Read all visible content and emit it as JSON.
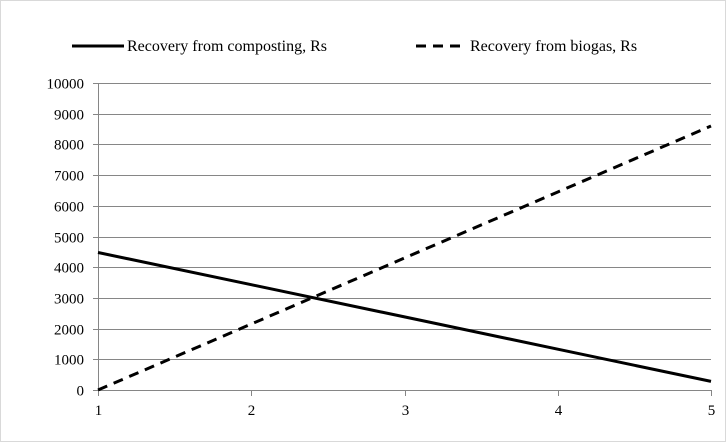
{
  "chart_data": {
    "type": "line",
    "x": [
      1,
      2,
      3,
      4,
      5
    ],
    "x_ticks": [
      "1",
      "2",
      "3",
      "4",
      "5"
    ],
    "y_ticks": [
      "0",
      "1000",
      "2000",
      "3000",
      "4000",
      "5000",
      "6000",
      "7000",
      "8000",
      "9000",
      "10000"
    ],
    "xlim": [
      1,
      5
    ],
    "ylim": [
      0,
      10000
    ],
    "grid": "horizontal",
    "legend_position": "top",
    "series": [
      {
        "name": "Recovery from composting, Rs",
        "values": [
          4480,
          3430,
          2380,
          1330,
          280
        ],
        "color": "#000000",
        "style": "solid"
      },
      {
        "name": "Recovery from biogas, Rs",
        "values": [
          0,
          2150,
          4300,
          6450,
          8600
        ],
        "color": "#000000",
        "style": "dashed"
      }
    ]
  }
}
